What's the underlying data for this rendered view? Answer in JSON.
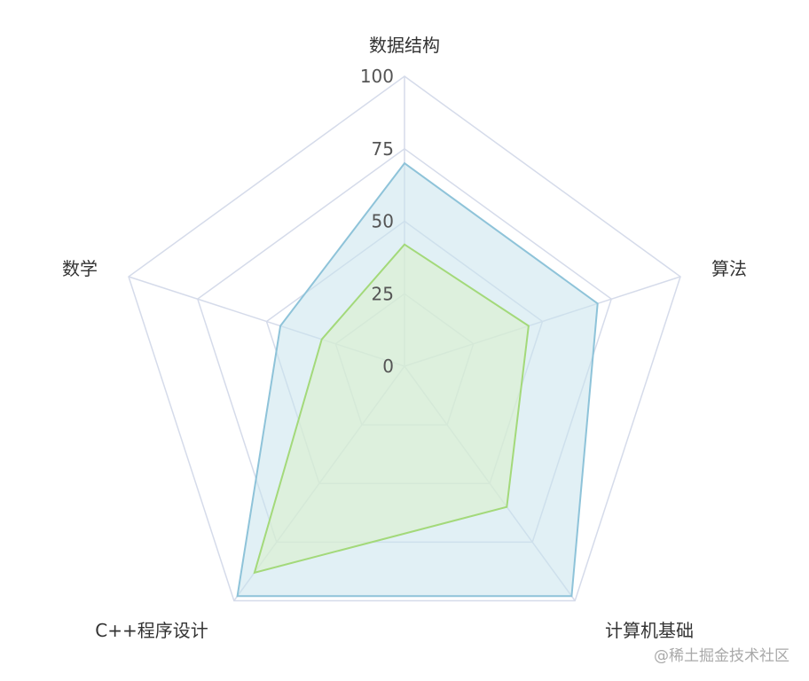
{
  "chart_data": {
    "type": "radar",
    "indicators": [
      "数据结构",
      "算法",
      "计算机基础",
      "C++程序设计",
      "数学"
    ],
    "max": 100,
    "ticks": [
      "0",
      "25",
      "50",
      "75",
      "100"
    ],
    "series": [
      {
        "values": [
          70,
          70,
          98,
          98,
          45
        ],
        "color": "#8ec3d9",
        "fill": "#c9e4ec"
      },
      {
        "values": [
          42,
          45,
          60,
          88,
          30
        ],
        "color": "#a3d97a",
        "fill": "#daf0c9"
      }
    ],
    "grid_color": "#d5dbea"
  },
  "watermark": "@稀土掘金技术社区"
}
